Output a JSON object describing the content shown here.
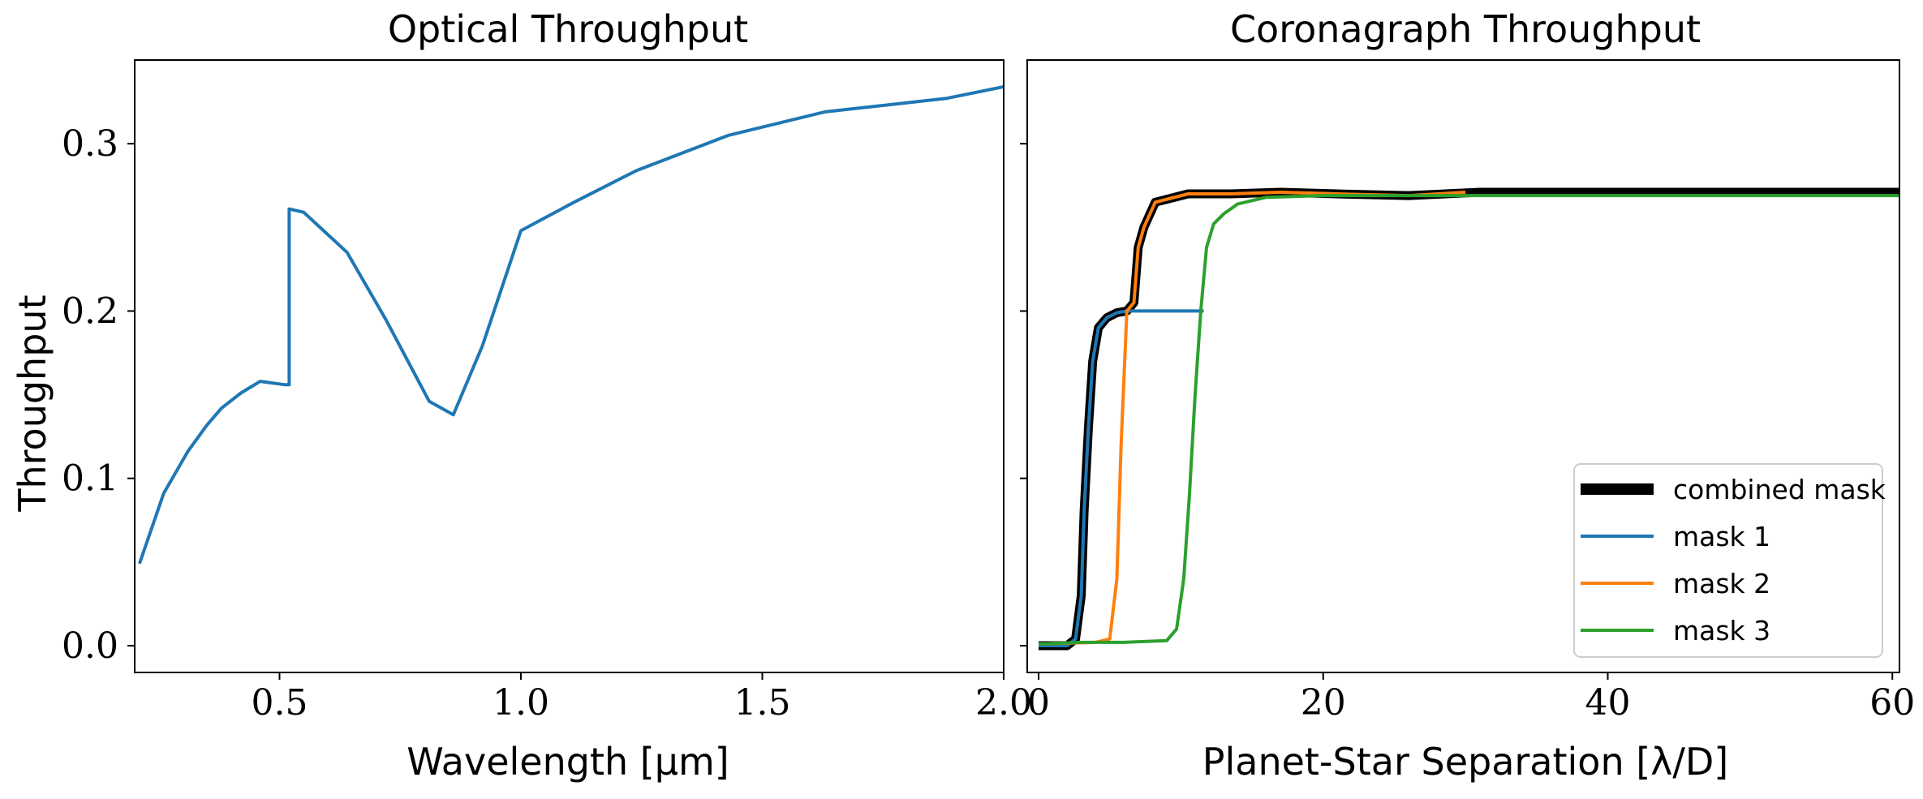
{
  "chart_data": [
    {
      "type": "line",
      "title": "Optical Throughput",
      "xlabel": "Wavelength [μm]",
      "ylabel": "Throughput",
      "xlim": [
        0.2,
        2.0
      ],
      "ylim": [
        -0.016,
        0.35
      ],
      "xticks": [
        0.5,
        1.0,
        1.5,
        2.0
      ],
      "xtick_labels": [
        "0.5",
        "1.0",
        "1.5",
        "2.0"
      ],
      "yticks": [
        0.0,
        0.1,
        0.2,
        0.3
      ],
      "ytick_labels": [
        "0.0",
        "0.1",
        "0.2",
        "0.3"
      ],
      "series": [
        {
          "name": "optical",
          "color": "#1f77b4",
          "x": [
            0.21,
            0.26,
            0.31,
            0.35,
            0.38,
            0.42,
            0.46,
            0.51,
            0.52,
            0.52,
            0.55,
            0.64,
            0.72,
            0.81,
            0.86,
            0.92,
            1.0,
            1.11,
            1.24,
            1.43,
            1.63,
            1.88,
            2.0
          ],
          "y": [
            0.049,
            0.091,
            0.116,
            0.132,
            0.142,
            0.151,
            0.158,
            0.156,
            0.156,
            0.261,
            0.259,
            0.235,
            0.195,
            0.146,
            0.138,
            0.179,
            0.248,
            0.265,
            0.284,
            0.305,
            0.319,
            0.327,
            0.334
          ]
        }
      ]
    },
    {
      "type": "line",
      "title": "Coronagraph Throughput",
      "xlabel": "Planet-Star Separation [λ/D]",
      "ylabel": "",
      "xlim": [
        -0.8,
        60.5
      ],
      "ylim": [
        -0.016,
        0.35
      ],
      "xticks": [
        0,
        20,
        40,
        60
      ],
      "xtick_labels": [
        "0",
        "20",
        "40",
        "60"
      ],
      "legend_position": "lower-right",
      "series": [
        {
          "name": "combined mask",
          "color": "#000000",
          "x": [
            0,
            2.0,
            2.6,
            3.0,
            3.2,
            3.5,
            3.8,
            4.2,
            4.8,
            5.5,
            6.2,
            6.7,
            7.0,
            7.4,
            8.2,
            10.5,
            13.5,
            17.0,
            21.0,
            26.0,
            31.0,
            40.0,
            50.0,
            60.5
          ],
          "y": [
            0.0,
            0.0,
            0.004,
            0.03,
            0.08,
            0.13,
            0.17,
            0.19,
            0.196,
            0.199,
            0.2,
            0.205,
            0.238,
            0.25,
            0.265,
            0.27,
            0.27,
            0.271,
            0.27,
            0.269,
            0.271,
            0.271,
            0.271,
            0.271
          ]
        },
        {
          "name": "mask 1",
          "color": "#1f77b4",
          "x": [
            0,
            2.0,
            2.6,
            3.0,
            3.2,
            3.5,
            3.8,
            4.2,
            4.8,
            5.5,
            6.2,
            8.0,
            10.0,
            11.6
          ],
          "y": [
            0.0,
            0.0,
            0.004,
            0.03,
            0.08,
            0.13,
            0.17,
            0.19,
            0.196,
            0.199,
            0.2,
            0.2,
            0.2,
            0.2
          ]
        },
        {
          "name": "mask 2",
          "color": "#ff7f0e",
          "x": [
            0,
            4.0,
            5.0,
            5.5,
            5.8,
            6.2,
            6.7,
            7.0,
            7.4,
            8.2,
            10.5,
            13.5,
            17.0,
            21.0,
            26.0,
            30.0
          ],
          "y": [
            0.001,
            0.002,
            0.004,
            0.04,
            0.12,
            0.2,
            0.205,
            0.238,
            0.25,
            0.265,
            0.27,
            0.27,
            0.271,
            0.27,
            0.269,
            0.271
          ]
        },
        {
          "name": "mask 3",
          "color": "#2ca02c",
          "x": [
            0,
            3.0,
            6.0,
            9.0,
            9.7,
            10.2,
            10.6,
            11.0,
            11.4,
            11.8,
            12.3,
            13.0,
            14.0,
            16.0,
            20.0,
            30.0,
            40.0,
            60.5
          ],
          "y": [
            0.001,
            0.002,
            0.002,
            0.003,
            0.01,
            0.04,
            0.09,
            0.15,
            0.2,
            0.238,
            0.252,
            0.258,
            0.264,
            0.268,
            0.269,
            0.269,
            0.269,
            0.269
          ]
        }
      ]
    }
  ]
}
